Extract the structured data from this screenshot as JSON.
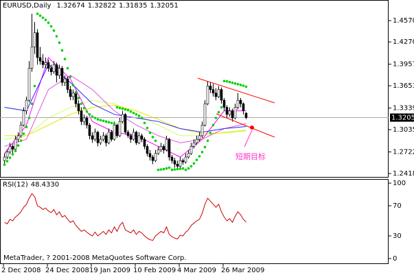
{
  "chart_data": {
    "type": "candlestick",
    "symbol": "EURUSD,Daily",
    "candles": [
      [
        1.26,
        1.27,
        1.256,
        1.265
      ],
      [
        1.265,
        1.276,
        1.262,
        1.272
      ],
      [
        1.272,
        1.285,
        1.269,
        1.28
      ],
      [
        1.28,
        1.283,
        1.27,
        1.276
      ],
      [
        1.276,
        1.295,
        1.274,
        1.29
      ],
      [
        1.29,
        1.3,
        1.286,
        1.295
      ],
      [
        1.295,
        1.315,
        1.292,
        1.31
      ],
      [
        1.31,
        1.335,
        1.308,
        1.33
      ],
      [
        1.33,
        1.35,
        1.325,
        1.345
      ],
      [
        1.345,
        1.4,
        1.342,
        1.39
      ],
      [
        1.39,
        1.4667,
        1.385,
        1.42
      ],
      [
        1.42,
        1.455,
        1.41,
        1.44
      ],
      [
        1.44,
        1.445,
        1.395,
        1.405
      ],
      [
        1.405,
        1.42,
        1.395,
        1.4
      ],
      [
        1.4,
        1.41,
        1.39,
        1.395
      ],
      [
        1.395,
        1.405,
        1.39,
        1.398
      ],
      [
        1.398,
        1.402,
        1.385,
        1.39
      ],
      [
        1.39,
        1.395,
        1.38,
        1.385
      ],
      [
        1.385,
        1.4,
        1.382,
        1.395
      ],
      [
        1.395,
        1.398,
        1.37,
        1.38
      ],
      [
        1.38,
        1.395,
        1.375,
        1.39
      ],
      [
        1.39,
        1.393,
        1.365,
        1.37
      ],
      [
        1.37,
        1.38,
        1.365,
        1.375
      ],
      [
        1.375,
        1.378,
        1.355,
        1.36
      ],
      [
        1.36,
        1.365,
        1.345,
        1.35
      ],
      [
        1.35,
        1.36,
        1.345,
        1.355
      ],
      [
        1.355,
        1.358,
        1.335,
        1.34
      ],
      [
        1.34,
        1.345,
        1.325,
        1.33
      ],
      [
        1.33,
        1.335,
        1.31,
        1.315
      ],
      [
        1.315,
        1.325,
        1.31,
        1.32
      ],
      [
        1.32,
        1.323,
        1.305,
        1.31
      ],
      [
        1.31,
        1.313,
        1.29,
        1.295
      ],
      [
        1.295,
        1.3,
        1.285,
        1.29
      ],
      [
        1.29,
        1.305,
        1.287,
        1.3
      ],
      [
        1.3,
        1.302,
        1.28,
        1.285
      ],
      [
        1.285,
        1.295,
        1.282,
        1.29
      ],
      [
        1.29,
        1.3,
        1.287,
        1.295
      ],
      [
        1.295,
        1.298,
        1.28,
        1.285
      ],
      [
        1.285,
        1.305,
        1.283,
        1.3
      ],
      [
        1.3,
        1.303,
        1.287,
        1.29
      ],
      [
        1.29,
        1.315,
        1.288,
        1.31
      ],
      [
        1.31,
        1.312,
        1.292,
        1.295
      ],
      [
        1.295,
        1.32,
        1.293,
        1.315
      ],
      [
        1.315,
        1.33,
        1.312,
        1.325
      ],
      [
        1.325,
        1.327,
        1.297,
        1.3
      ],
      [
        1.3,
        1.303,
        1.292,
        1.295
      ],
      [
        1.295,
        1.298,
        1.285,
        1.29
      ],
      [
        1.29,
        1.305,
        1.288,
        1.3
      ],
      [
        1.3,
        1.302,
        1.282,
        1.285
      ],
      [
        1.285,
        1.3,
        1.283,
        1.295
      ],
      [
        1.295,
        1.298,
        1.286,
        1.29
      ],
      [
        1.29,
        1.293,
        1.276,
        1.28
      ],
      [
        1.28,
        1.283,
        1.266,
        1.27
      ],
      [
        1.27,
        1.275,
        1.26,
        1.265
      ],
      [
        1.265,
        1.268,
        1.255,
        1.26
      ],
      [
        1.26,
        1.275,
        1.258,
        1.27
      ],
      [
        1.27,
        1.28,
        1.268,
        1.275
      ],
      [
        1.275,
        1.285,
        1.272,
        1.28
      ],
      [
        1.28,
        1.283,
        1.27,
        1.275
      ],
      [
        1.275,
        1.295,
        1.273,
        1.29
      ],
      [
        1.29,
        1.292,
        1.26,
        1.265
      ],
      [
        1.265,
        1.268,
        1.256,
        1.26
      ],
      [
        1.26,
        1.264,
        1.25,
        1.255
      ],
      [
        1.255,
        1.26,
        1.247,
        1.252
      ],
      [
        1.252,
        1.265,
        1.25,
        1.26
      ],
      [
        1.26,
        1.263,
        1.254,
        1.258
      ],
      [
        1.258,
        1.27,
        1.256,
        1.265
      ],
      [
        1.265,
        1.275,
        1.263,
        1.27
      ],
      [
        1.27,
        1.285,
        1.268,
        1.28
      ],
      [
        1.28,
        1.29,
        1.277,
        1.285
      ],
      [
        1.285,
        1.295,
        1.282,
        1.29
      ],
      [
        1.29,
        1.3,
        1.287,
        1.295
      ],
      [
        1.295,
        1.315,
        1.292,
        1.31
      ],
      [
        1.31,
        1.345,
        1.308,
        1.34
      ],
      [
        1.34,
        1.372,
        1.338,
        1.365
      ],
      [
        1.365,
        1.37,
        1.355,
        1.36
      ],
      [
        1.36,
        1.368,
        1.35,
        1.355
      ],
      [
        1.355,
        1.362,
        1.345,
        1.35
      ],
      [
        1.35,
        1.365,
        1.348,
        1.36
      ],
      [
        1.36,
        1.363,
        1.34,
        1.345
      ],
      [
        1.345,
        1.348,
        1.33,
        1.335
      ],
      [
        1.335,
        1.338,
        1.32,
        1.325
      ],
      [
        1.325,
        1.335,
        1.322,
        1.33
      ],
      [
        1.33,
        1.333,
        1.315,
        1.32
      ],
      [
        1.32,
        1.34,
        1.318,
        1.335
      ],
      [
        1.335,
        1.355,
        1.332,
        1.345
      ],
      [
        1.345,
        1.348,
        1.335,
        1.34
      ],
      [
        1.34,
        1.342,
        1.325,
        1.33
      ],
      [
        1.32674,
        1.32822,
        1.31835,
        1.32051
      ]
    ],
    "sar": {
      "color": "#00d000",
      "values": [
        1.2543,
        1.2591,
        1.264,
        1.2688,
        1.2736,
        1.2813,
        1.2881,
        1.2978,
        1.3074,
        1.32,
        1.34,
        1.365,
        1.4667,
        1.464,
        1.461,
        1.458,
        1.454,
        1.449,
        1.443,
        1.435,
        1.426,
        1.415,
        1.403,
        1.39,
        1.378,
        1.366,
        1.356,
        1.348,
        1.34,
        1.334,
        1.329,
        1.325,
        1.322,
        1.32,
        1.318,
        1.317,
        1.316,
        1.315,
        1.314,
        1.313,
        1.312,
        1.335,
        1.334,
        1.333,
        1.332,
        1.331,
        1.329,
        1.327,
        1.325,
        1.323,
        1.32,
        1.313,
        1.306,
        1.299,
        1.293,
        1.288,
        1.247,
        1.2475,
        1.248,
        1.249,
        1.25,
        1.247,
        1.2475,
        1.248,
        1.2485,
        1.249,
        1.247,
        1.249,
        1.252,
        1.256,
        1.261,
        1.266,
        1.272,
        1.279,
        1.288,
        1.299,
        1.31,
        1.32,
        1.328,
        1.335,
        1.372,
        1.3715,
        1.3705,
        1.3695,
        1.3685,
        1.3675,
        1.3665,
        1.3655,
        1.364
      ]
    },
    "overlay_bars": [
      0,
      8,
      16,
      24,
      32,
      40,
      48,
      56,
      64,
      72,
      80,
      88
    ],
    "series": [
      {
        "color": "#ccff66",
        "values": [
          1.29,
          1.295,
          1.32,
          1.335,
          1.345,
          1.34,
          1.325,
          1.31,
          1.295,
          1.295,
          1.3,
          1.303
        ]
      },
      {
        "color": "#e6e600",
        "values": [
          1.295,
          1.295,
          1.31,
          1.325,
          1.335,
          1.338,
          1.33,
          1.318,
          1.305,
          1.298,
          1.299,
          1.302
        ]
      },
      {
        "color": "#dd55dd",
        "values": [
          1.28,
          1.29,
          1.36,
          1.38,
          1.36,
          1.33,
          1.31,
          1.295,
          1.285,
          1.29,
          1.305,
          1.312
        ]
      },
      {
        "color": "#ff00ff",
        "values": [
          1.27,
          1.31,
          1.405,
          1.375,
          1.315,
          1.3,
          1.295,
          1.28,
          1.265,
          1.29,
          1.33,
          1.33
        ]
      },
      {
        "color": "#2222ff",
        "values": [
          1.335,
          1.33,
          1.395,
          1.37,
          1.34,
          1.325,
          1.32,
          1.315,
          1.305,
          1.3,
          1.305,
          1.308
        ]
      }
    ],
    "xlim": [
      -1.25,
      140.25
    ],
    "ylim": [
      1.237,
      1.4841
    ],
    "yticks": [
      1.45705,
      1.42705,
      {
        "value": 1.3957,
        "label": "1.39570"
      },
      {
        "value": 1.3653,
        "label": "1.36530"
      },
      1.33395,
      1.30355,
      {
        "value": 1.2722,
        "label": "1.27220"
      },
      {
        "value": 1.2418,
        "label": "1.24180"
      }
    ],
    "xticks": [
      {
        "value": 0,
        "label": "2 Dec 2008"
      },
      {
        "value": 16,
        "label": "24 Dec 2008"
      },
      {
        "value": 32,
        "label": "19 Jan 2009"
      },
      {
        "value": 48,
        "label": "10 Feb 2009"
      },
      {
        "value": 64,
        "label": "4 Mar 2009"
      },
      {
        "value": 80,
        "label": "26 Mar 2009"
      }
    ],
    "annotation": "短期目标",
    "rsi": {
      "type": "line",
      "title": "RSI(12)",
      "current": "48.4330",
      "color": "#cc0000",
      "ylim": [
        -7.3,
        105.5
      ],
      "yticks": [
        100,
        70,
        30,
        0
      ],
      "values": [
        48,
        46,
        52,
        50,
        55,
        58,
        62,
        68,
        72,
        80,
        86,
        82,
        70,
        68,
        65,
        67,
        63,
        61,
        65,
        58,
        62,
        55,
        57,
        52,
        48,
        50,
        44,
        40,
        36,
        38,
        35,
        32,
        30,
        35,
        30,
        33,
        36,
        32,
        38,
        34,
        42,
        36,
        44,
        48,
        38,
        36,
        34,
        38,
        32,
        36,
        34,
        30,
        27,
        25,
        24,
        30,
        33,
        36,
        34,
        42,
        32,
        29,
        27,
        26,
        31,
        30,
        35,
        38,
        44,
        47,
        50,
        52,
        60,
        72,
        80,
        76,
        72,
        68,
        72,
        62,
        55,
        50,
        53,
        48,
        56,
        62,
        58,
        52,
        48.433
      ]
    },
    "footer": "MetaTrader, ? 2001-2008 MetaQuotes Software Corp."
  }
}
